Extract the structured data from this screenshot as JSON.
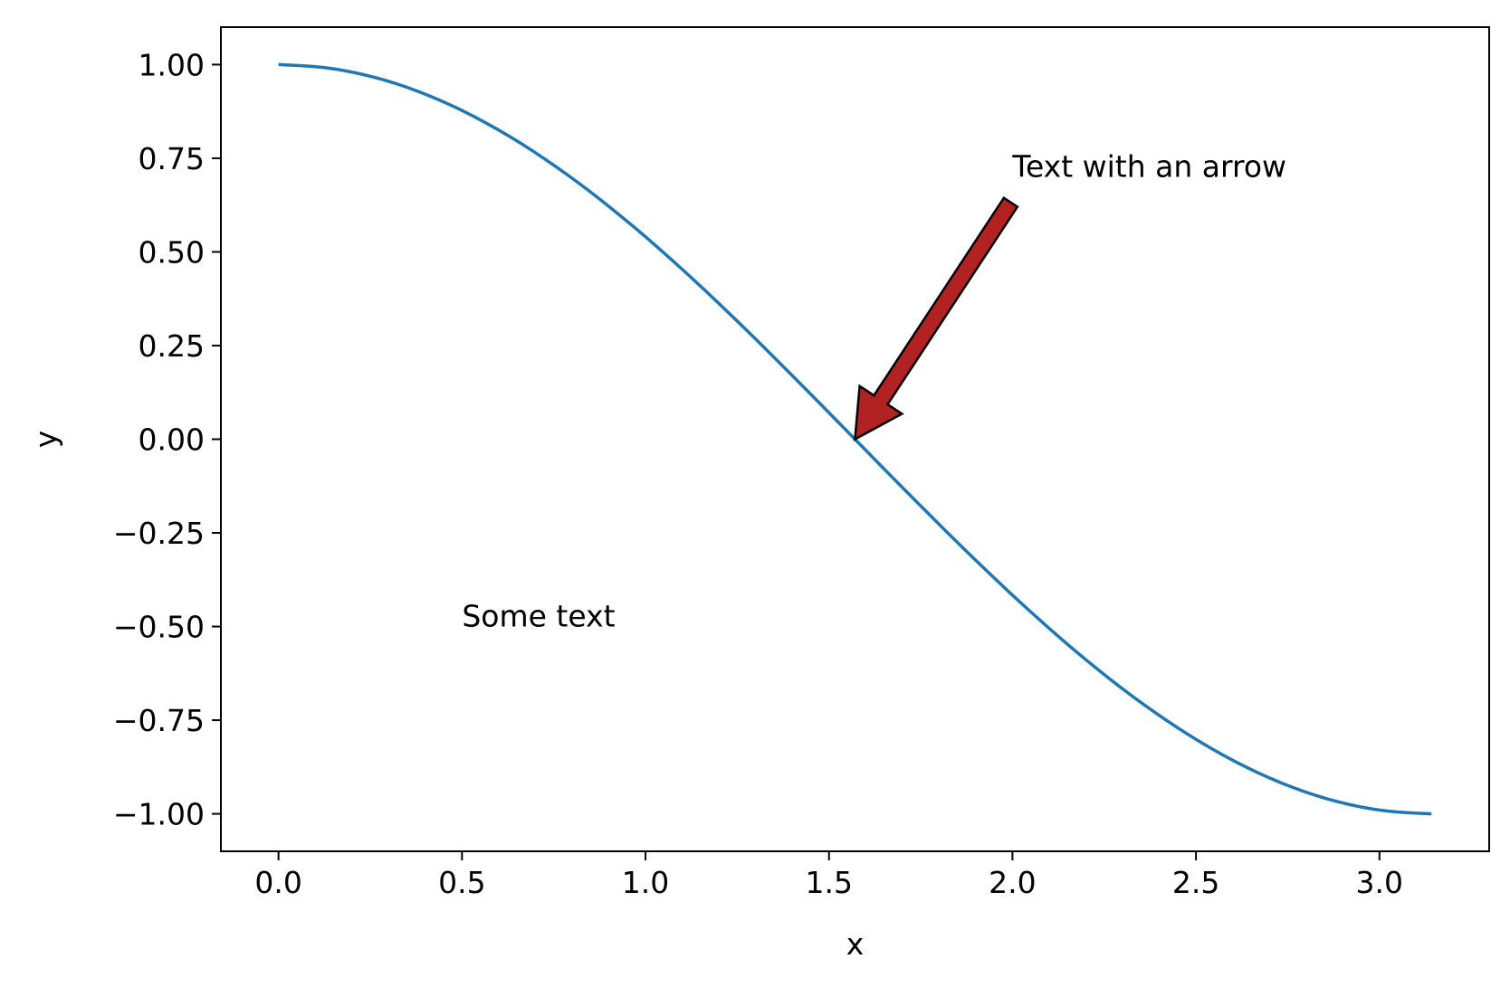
{
  "chart_data": {
    "type": "line",
    "xlabel": "x",
    "ylabel": "y",
    "xlim": [
      -0.157,
      3.299
    ],
    "ylim": [
      -1.1,
      1.1
    ],
    "x_ticks": [
      0.0,
      0.5,
      1.0,
      1.5,
      2.0,
      2.5,
      3.0
    ],
    "x_tick_labels": [
      "0.0",
      "0.5",
      "1.0",
      "1.5",
      "2.0",
      "2.5",
      "3.0"
    ],
    "y_ticks": [
      1.0,
      0.75,
      0.5,
      0.25,
      0.0,
      -0.25,
      -0.5,
      -0.75,
      -1.0
    ],
    "y_tick_labels": [
      "1.00",
      "0.75",
      "0.50",
      "0.25",
      "0.00",
      "−0.25",
      "−0.50",
      "−0.75",
      "−1.00"
    ],
    "grid": false,
    "series": [
      {
        "color": "#1f77b4",
        "x": [
          0.0,
          0.1571,
          0.3142,
          0.4712,
          0.6283,
          0.7854,
          0.9425,
          1.0996,
          1.2566,
          1.4137,
          1.5708,
          1.7279,
          1.885,
          2.042,
          2.1991,
          2.3562,
          2.5133,
          2.6704,
          2.8274,
          2.9845,
          3.1416
        ],
        "y": [
          1.0,
          0.9877,
          0.9511,
          0.891,
          0.809,
          0.7071,
          0.5878,
          0.454,
          0.309,
          0.1564,
          0.0,
          -0.1564,
          -0.309,
          -0.454,
          -0.5878,
          -0.7071,
          -0.809,
          -0.891,
          -0.9511,
          -0.9877,
          -1.0
        ]
      }
    ],
    "annotations": [
      {
        "text": "Some text",
        "x": 0.5,
        "y": -0.5
      },
      {
        "text": "Text with an arrow",
        "x": 2.0,
        "y": 0.7,
        "arrow_to": [
          1.5708,
          0.0
        ],
        "arrow_color": "#b22222"
      }
    ]
  }
}
